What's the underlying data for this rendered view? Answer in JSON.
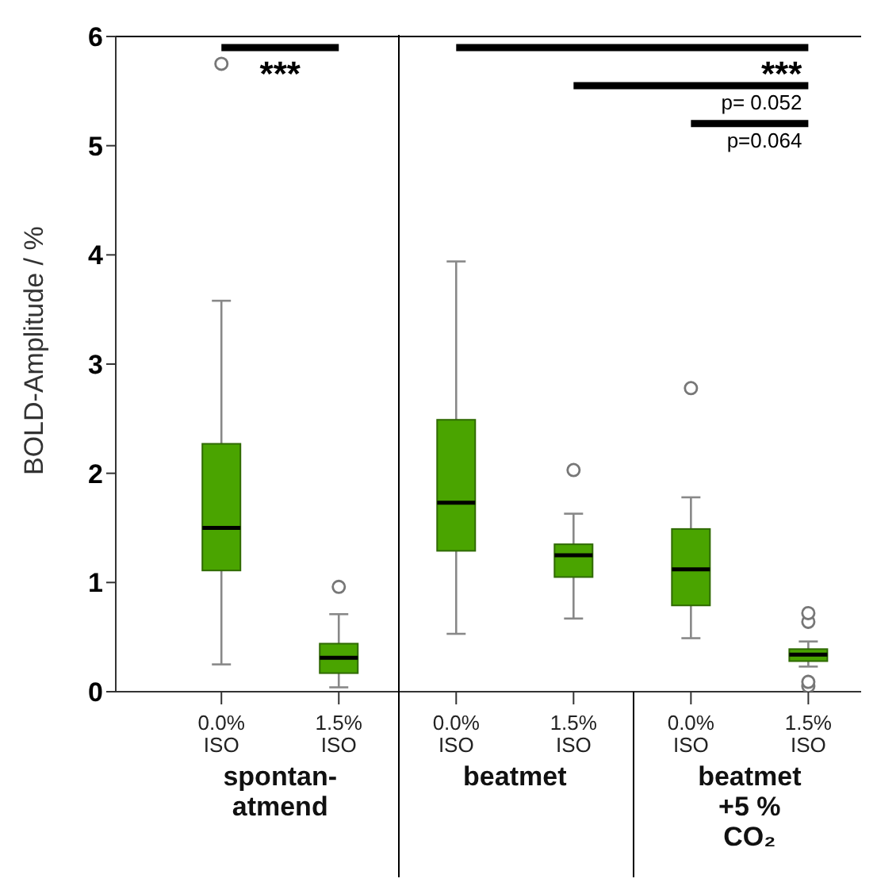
{
  "chart_data": {
    "type": "box",
    "ylabel": "BOLD-Amplitude / %",
    "color": "#4aa400",
    "categories": [
      "0.0% ISO",
      "1.5% ISO",
      "0.0% ISO",
      "1.5% ISO",
      "0.0% ISO",
      "1.5% ISO"
    ],
    "boxes": [
      {
        "low": 0.25,
        "q1": 1.11,
        "median": 1.5,
        "q3": 2.27,
        "high": 3.58,
        "outliers": [
          5.75
        ]
      },
      {
        "low": 0.04,
        "q1": 0.17,
        "median": 0.31,
        "q3": 0.44,
        "high": 0.71,
        "outliers": [
          0.96
        ]
      },
      {
        "low": 0.53,
        "q1": 1.29,
        "median": 1.73,
        "q3": 2.49,
        "high": 3.94
      },
      {
        "low": 0.67,
        "q1": 1.05,
        "median": 1.25,
        "q3": 1.35,
        "high": 1.63,
        "outliers": [
          2.03
        ]
      },
      {
        "low": 0.49,
        "q1": 0.79,
        "median": 1.12,
        "q3": 1.49,
        "high": 1.78,
        "outliers": [
          2.78
        ]
      },
      {
        "low": 0.23,
        "q1": 0.28,
        "median": 0.34,
        "q3": 0.39,
        "high": 0.46,
        "outliers": [
          0.05,
          0.09,
          0.64,
          0.72
        ]
      }
    ],
    "ylim": [
      0,
      6
    ],
    "yticks": [
      0,
      1,
      2,
      3,
      4,
      5,
      6
    ],
    "annotations": [
      "***",
      "***",
      "p= 0.052",
      "p=0.064",
      "spontan-atmend",
      "beatmet",
      "beatmet +5 % CO₂"
    ]
  }
}
